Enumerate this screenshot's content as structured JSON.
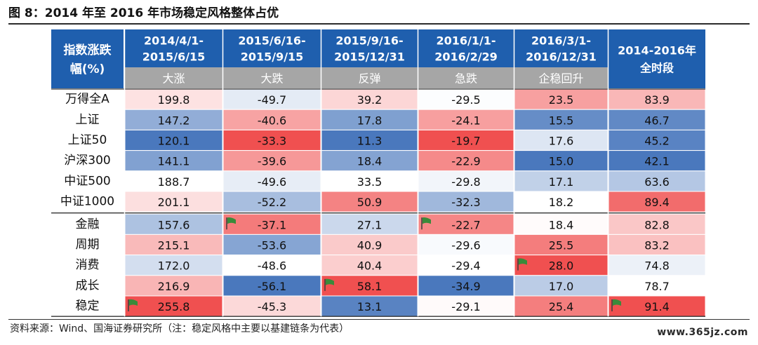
{
  "figure": {
    "title": "图 8：2014 年至 2016 年市场稳定风格整体占优",
    "source": "资料来源：Wind、国海证券研究所（注：稳定风格中主要以基建链条为代表）",
    "watermark": "www.365jz.com"
  },
  "colors": {
    "header_blue": "#1f5fae",
    "header_gray": "#a6a6a6",
    "header_text": "#ffffff",
    "high_red": "#f05050",
    "mid_white": "#ffffff",
    "low_blue": "#4a78bd",
    "flag_green": "#3a8a3a"
  },
  "chart_data": {
    "type": "table",
    "corner_label_line1": "指数涨跌",
    "corner_label_line2": "幅(%)",
    "columns": [
      {
        "period_line1": "2014/4/1-",
        "period_line2": "2015/6/15",
        "phase": "大涨"
      },
      {
        "period_line1": "2015/6/16-",
        "period_line2": "2015/9/15",
        "phase": "大跌"
      },
      {
        "period_line1": "2015/9/16-",
        "period_line2": "2015/12/31",
        "phase": "反弹"
      },
      {
        "period_line1": "2016/1/1-",
        "period_line2": "2016/2/29",
        "phase": "急跌"
      },
      {
        "period_line1": "2016/3/1-",
        "period_line2": "2016/12/31",
        "phase": "企稳回升"
      },
      {
        "period_line1": "2014-2016年",
        "period_line2": "全时段",
        "phase": ""
      }
    ],
    "row_groups": [
      {
        "name": "indices",
        "rows": [
          {
            "label": "万得全A",
            "values": [
              "199.8",
              "-49.7",
              "39.2",
              "-29.5",
              "23.5",
              "83.9"
            ]
          },
          {
            "label": "上证",
            "values": [
              "147.2",
              "-40.6",
              "17.8",
              "-24.1",
              "15.5",
              "46.7"
            ]
          },
          {
            "label": "上证50",
            "values": [
              "120.1",
              "-33.3",
              "11.3",
              "-19.7",
              "17.6",
              "45.2"
            ]
          },
          {
            "label": "沪深300",
            "values": [
              "141.1",
              "-39.6",
              "18.4",
              "-22.9",
              "15.0",
              "42.1"
            ]
          },
          {
            "label": "中证500",
            "values": [
              "188.7",
              "-49.6",
              "33.5",
              "-29.8",
              "17.1",
              "63.6"
            ]
          },
          {
            "label": "中证1000",
            "values": [
              "201.1",
              "-52.2",
              "50.9",
              "-32.3",
              "18.2",
              "89.4"
            ]
          }
        ]
      },
      {
        "name": "styles",
        "rows": [
          {
            "label": "金融",
            "values": [
              "157.6",
              "-37.1",
              "27.1",
              "-22.7",
              "18.4",
              "82.8"
            ]
          },
          {
            "label": "周期",
            "values": [
              "215.1",
              "-53.6",
              "40.9",
              "-29.6",
              "25.5",
              "83.2"
            ]
          },
          {
            "label": "消费",
            "values": [
              "172.0",
              "-48.6",
              "40.4",
              "-29.4",
              "28.0",
              "74.8"
            ]
          },
          {
            "label": "成长",
            "values": [
              "216.9",
              "-56.1",
              "58.1",
              "-34.9",
              "17.0",
              "78.7"
            ]
          },
          {
            "label": "稳定",
            "values": [
              "255.8",
              "-45.3",
              "13.1",
              "-29.1",
              "25.4",
              "91.4"
            ]
          }
        ]
      }
    ],
    "flags": [
      {
        "group": 1,
        "row": 0,
        "col": 1
      },
      {
        "group": 1,
        "row": 0,
        "col": 3
      },
      {
        "group": 1,
        "row": 2,
        "col": 4
      },
      {
        "group": 1,
        "row": 3,
        "col": 2
      },
      {
        "group": 1,
        "row": 4,
        "col": 0
      },
      {
        "group": 1,
        "row": 4,
        "col": 5
      }
    ],
    "color_scale": "per-column red-white-blue (high = red, low = blue)"
  }
}
